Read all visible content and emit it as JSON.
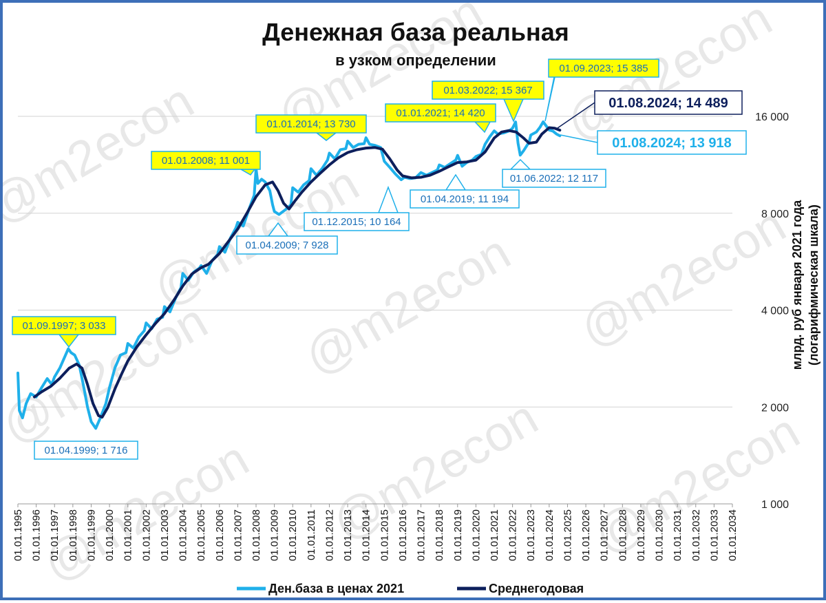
{
  "chart_data": {
    "type": "line",
    "title": "Денежная база реальная",
    "subtitle": "в узком определении",
    "ylabel_line1": "млрд. руб января 2021 года",
    "ylabel_line2": "(логарифмическая шкала)",
    "y_scale": "log2",
    "ylim": [
      1000,
      20000
    ],
    "y_ticks": [
      {
        "value": 1000,
        "label": "1 000"
      },
      {
        "value": 2000,
        "label": "2 000"
      },
      {
        "value": 4000,
        "label": "4 000"
      },
      {
        "value": 8000,
        "label": "8 000"
      },
      {
        "value": 16000,
        "label": "16 000"
      }
    ],
    "x_range": [
      1995,
      2034
    ],
    "x_tick_labels": [
      "01.01.1995",
      "01.01.1996",
      "01.01.1997",
      "01.01.1998",
      "01.01.1999",
      "01.01.2000",
      "01.01.2001",
      "01.01.2002",
      "01.01.2003",
      "01.01.2004",
      "01.01.2005",
      "01.01.2006",
      "01.01.2007",
      "01.01.2008",
      "01.01.2009",
      "01.01.2010",
      "01.01.2011",
      "01.01.2012",
      "01.01.2013",
      "01.01.2014",
      "01.01.2015",
      "01.01.2016",
      "01.01.2017",
      "01.01.2018",
      "01.01.2019",
      "01.01.2020",
      "01.01.2021",
      "01.01.2022",
      "01.01.2023",
      "01.01.2024",
      "01.01.2025",
      "01.01.2026",
      "01.01.2027",
      "01.01.2028",
      "01.01.2029",
      "01.01.2030",
      "01.01.2031",
      "01.01.2032",
      "01.01.2033",
      "01.01.2034"
    ],
    "grid": "horizontal",
    "legend_position": "bottom",
    "watermark": "@m2econ",
    "series": [
      {
        "name": "Ден.база в ценах 2021",
        "color": "#1fb0ea",
        "points": [
          [
            1995.0,
            2550
          ],
          [
            1995.08,
            1950
          ],
          [
            1995.25,
            1850
          ],
          [
            1995.45,
            2050
          ],
          [
            1995.7,
            2200
          ],
          [
            1996.0,
            2150
          ],
          [
            1996.3,
            2300
          ],
          [
            1996.6,
            2450
          ],
          [
            1996.85,
            2350
          ],
          [
            1997.0,
            2480
          ],
          [
            1997.3,
            2650
          ],
          [
            1997.6,
            2900
          ],
          [
            1997.75,
            3033
          ],
          [
            1997.9,
            2950
          ],
          [
            1998.1,
            2900
          ],
          [
            1998.35,
            2700
          ],
          [
            1998.6,
            2300
          ],
          [
            1998.8,
            2000
          ],
          [
            1999.0,
            1800
          ],
          [
            1999.25,
            1716
          ],
          [
            1999.5,
            1850
          ],
          [
            1999.8,
            2050
          ],
          [
            2000.0,
            2300
          ],
          [
            2000.3,
            2650
          ],
          [
            2000.6,
            2900
          ],
          [
            2000.9,
            2950
          ],
          [
            2001.0,
            3150
          ],
          [
            2001.3,
            3050
          ],
          [
            2001.6,
            3300
          ],
          [
            2001.9,
            3450
          ],
          [
            2002.0,
            3650
          ],
          [
            2002.3,
            3500
          ],
          [
            2002.6,
            3750
          ],
          [
            2002.9,
            3800
          ],
          [
            2003.0,
            4100
          ],
          [
            2003.3,
            3950
          ],
          [
            2003.6,
            4350
          ],
          [
            2003.9,
            4700
          ],
          [
            2004.0,
            5200
          ],
          [
            2004.3,
            4950
          ],
          [
            2004.6,
            5250
          ],
          [
            2004.9,
            5400
          ],
          [
            2005.0,
            5500
          ],
          [
            2005.3,
            5200
          ],
          [
            2005.6,
            5700
          ],
          [
            2005.9,
            5950
          ],
          [
            2006.0,
            6300
          ],
          [
            2006.3,
            6050
          ],
          [
            2006.6,
            6700
          ],
          [
            2006.9,
            7200
          ],
          [
            2007.0,
            7500
          ],
          [
            2007.3,
            7300
          ],
          [
            2007.6,
            8200
          ],
          [
            2007.9,
            9100
          ],
          [
            2008.0,
            11001
          ],
          [
            2008.1,
            9900
          ],
          [
            2008.3,
            10200
          ],
          [
            2008.5,
            10000
          ],
          [
            2008.75,
            9400
          ],
          [
            2008.9,
            8500
          ],
          [
            2009.0,
            8100
          ],
          [
            2009.25,
            7928
          ],
          [
            2009.6,
            8200
          ],
          [
            2009.9,
            8500
          ],
          [
            2010.0,
            9600
          ],
          [
            2010.3,
            9300
          ],
          [
            2010.6,
            9800
          ],
          [
            2010.9,
            10100
          ],
          [
            2011.0,
            11000
          ],
          [
            2011.3,
            10500
          ],
          [
            2011.6,
            11000
          ],
          [
            2011.9,
            11700
          ],
          [
            2012.0,
            12300
          ],
          [
            2012.3,
            11800
          ],
          [
            2012.6,
            12600
          ],
          [
            2012.9,
            12700
          ],
          [
            2013.0,
            13400
          ],
          [
            2013.3,
            12800
          ],
          [
            2013.6,
            13100
          ],
          [
            2013.9,
            13150
          ],
          [
            2014.0,
            13730
          ],
          [
            2014.2,
            13100
          ],
          [
            2014.5,
            13000
          ],
          [
            2014.8,
            12800
          ],
          [
            2015.0,
            11600
          ],
          [
            2015.3,
            11100
          ],
          [
            2015.6,
            10600
          ],
          [
            2015.92,
            10164
          ],
          [
            2016.1,
            10350
          ],
          [
            2016.4,
            10250
          ],
          [
            2016.7,
            10300
          ],
          [
            2017.0,
            10700
          ],
          [
            2017.3,
            10500
          ],
          [
            2017.6,
            10700
          ],
          [
            2017.9,
            10900
          ],
          [
            2018.0,
            11300
          ],
          [
            2018.3,
            11100
          ],
          [
            2018.6,
            11400
          ],
          [
            2018.9,
            11700
          ],
          [
            2019.0,
            12100
          ],
          [
            2019.25,
            11194
          ],
          [
            2019.5,
            11500
          ],
          [
            2019.8,
            11700
          ],
          [
            2020.0,
            12000
          ],
          [
            2020.3,
            12200
          ],
          [
            2020.5,
            13100
          ],
          [
            2020.75,
            13800
          ],
          [
            2021.0,
            14420
          ],
          [
            2021.2,
            14100
          ],
          [
            2021.5,
            14200
          ],
          [
            2021.8,
            14400
          ],
          [
            2022.0,
            14700
          ],
          [
            2022.17,
            15367
          ],
          [
            2022.3,
            13200
          ],
          [
            2022.42,
            12117
          ],
          [
            2022.6,
            12500
          ],
          [
            2022.9,
            13300
          ],
          [
            2023.0,
            14000
          ],
          [
            2023.3,
            14300
          ],
          [
            2023.5,
            14800
          ],
          [
            2023.67,
            15385
          ],
          [
            2023.85,
            14900
          ],
          [
            2024.0,
            14500
          ],
          [
            2024.2,
            14400
          ],
          [
            2024.4,
            14100
          ],
          [
            2024.58,
            13918
          ]
        ]
      },
      {
        "name": "Среднегодовая",
        "color": "#0d1f5c",
        "points": [
          [
            1995.9,
            2150
          ],
          [
            1996.3,
            2230
          ],
          [
            1996.8,
            2320
          ],
          [
            1997.3,
            2460
          ],
          [
            1997.8,
            2640
          ],
          [
            1998.2,
            2720
          ],
          [
            1998.5,
            2640
          ],
          [
            1998.8,
            2350
          ],
          [
            1999.1,
            2050
          ],
          [
            1999.4,
            1880
          ],
          [
            1999.6,
            1860
          ],
          [
            1999.9,
            1990
          ],
          [
            2000.3,
            2280
          ],
          [
            2000.7,
            2560
          ],
          [
            2001.0,
            2780
          ],
          [
            2001.5,
            3080
          ],
          [
            2002.0,
            3350
          ],
          [
            2002.5,
            3630
          ],
          [
            2003.0,
            3900
          ],
          [
            2003.5,
            4280
          ],
          [
            2004.0,
            4750
          ],
          [
            2004.5,
            5180
          ],
          [
            2005.0,
            5420
          ],
          [
            2005.4,
            5550
          ],
          [
            2006.0,
            6000
          ],
          [
            2006.5,
            6550
          ],
          [
            2007.0,
            7150
          ],
          [
            2007.5,
            8000
          ],
          [
            2008.0,
            9000
          ],
          [
            2008.5,
            9800
          ],
          [
            2008.9,
            10000
          ],
          [
            2009.2,
            9400
          ],
          [
            2009.5,
            8600
          ],
          [
            2009.8,
            8250
          ],
          [
            2010.1,
            8700
          ],
          [
            2010.5,
            9300
          ],
          [
            2011.0,
            10000
          ],
          [
            2011.5,
            10650
          ],
          [
            2012.0,
            11300
          ],
          [
            2012.5,
            11900
          ],
          [
            2013.0,
            12350
          ],
          [
            2013.5,
            12600
          ],
          [
            2014.0,
            12750
          ],
          [
            2014.5,
            12800
          ],
          [
            2014.9,
            12650
          ],
          [
            2015.3,
            11800
          ],
          [
            2015.7,
            10900
          ],
          [
            2016.0,
            10450
          ],
          [
            2016.5,
            10300
          ],
          [
            2017.0,
            10350
          ],
          [
            2017.5,
            10500
          ],
          [
            2018.0,
            10800
          ],
          [
            2018.5,
            11150
          ],
          [
            2019.0,
            11500
          ],
          [
            2019.5,
            11550
          ],
          [
            2020.0,
            11700
          ],
          [
            2020.5,
            12400
          ],
          [
            2021.0,
            13700
          ],
          [
            2021.4,
            14300
          ],
          [
            2021.8,
            14450
          ],
          [
            2022.2,
            14300
          ],
          [
            2022.6,
            13700
          ],
          [
            2022.9,
            13200
          ],
          [
            2023.3,
            13300
          ],
          [
            2023.6,
            14100
          ],
          [
            2024.0,
            14750
          ],
          [
            2024.3,
            14700
          ],
          [
            2024.58,
            14489
          ]
        ]
      }
    ],
    "annotations": [
      {
        "label": "01.09.1997; 3 033",
        "x": 1997.75,
        "y": 3033,
        "style": "yellow"
      },
      {
        "label": "01.04.1999; 1 716",
        "x": 1999.25,
        "y": 1716,
        "style": "white"
      },
      {
        "label": "01.01.2008; 11 001",
        "x": 2008.0,
        "y": 11001,
        "style": "yellow"
      },
      {
        "label": "01.04.2009; 7 928",
        "x": 2009.25,
        "y": 7928,
        "style": "white"
      },
      {
        "label": "01.01.2014; 13 730",
        "x": 2014.0,
        "y": 13730,
        "style": "yellow"
      },
      {
        "label": "01.12.2015; 10 164",
        "x": 2015.92,
        "y": 10164,
        "style": "white"
      },
      {
        "label": "01.01.2021; 14 420",
        "x": 2021.0,
        "y": 14420,
        "style": "yellow"
      },
      {
        "label": "01.03.2022; 15 367",
        "x": 2022.17,
        "y": 15367,
        "style": "yellow"
      },
      {
        "label": "01.09.2023; 15 385",
        "x": 2023.67,
        "y": 15385,
        "style": "yellow"
      },
      {
        "label": "01.04.2019; 11 194",
        "x": 2019.25,
        "y": 11194,
        "style": "white"
      },
      {
        "label": "01.06.2022; 12 117",
        "x": 2022.42,
        "y": 12117,
        "style": "white"
      },
      {
        "label": "01.08.2024;  14 489",
        "x": 2024.58,
        "y": 14489,
        "style": "navy-big"
      },
      {
        "label": "01.08.2024;  13 918",
        "x": 2024.58,
        "y": 13918,
        "style": "blue-big"
      }
    ]
  }
}
